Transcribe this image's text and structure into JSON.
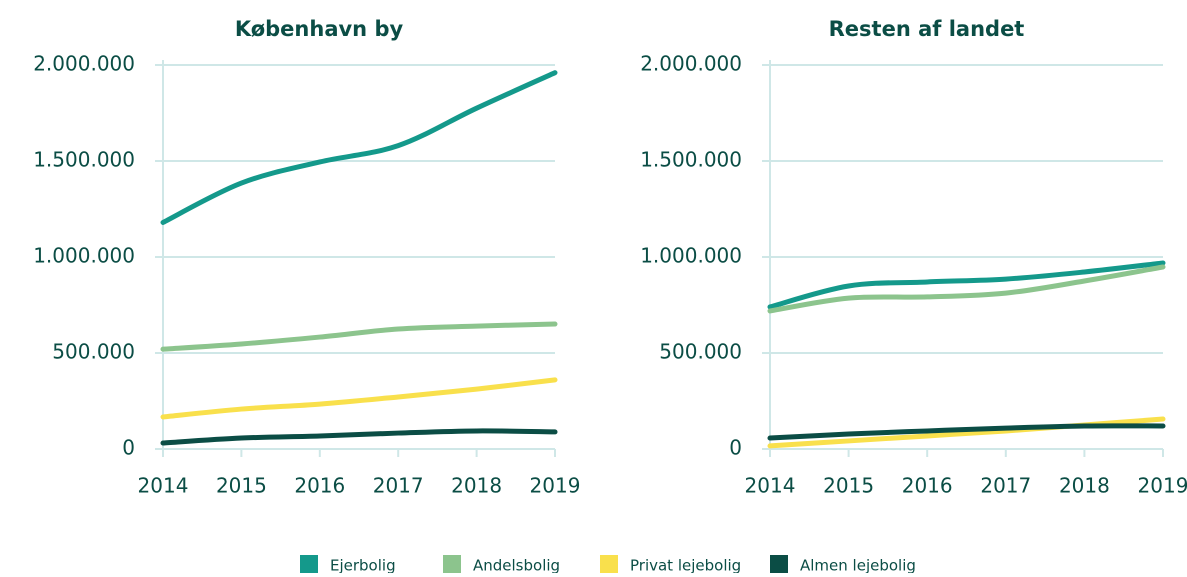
{
  "chart_data": [
    {
      "type": "line",
      "title": "København by",
      "x": [
        2014,
        2015,
        2016,
        2017,
        2018,
        2019
      ],
      "xlim": [
        2014,
        2019
      ],
      "xticks": [
        2014,
        2015,
        2016,
        2017,
        2018,
        2019
      ],
      "ylim": [
        0,
        2000000
      ],
      "yticks": [
        0,
        {
          "value": 500000,
          "label": "500.000"
        },
        {
          "value": 1000000,
          "label": "1.000.000"
        },
        {
          "value": 1500000,
          "label": "1.500.000"
        },
        {
          "value": 2000000,
          "label": "2.000.000"
        }
      ],
      "grid": true,
      "series": [
        {
          "name": "Ejerbolig",
          "color": "#14998b",
          "values": [
            1180000,
            1385000,
            1495000,
            1580000,
            1775000,
            1960000
          ]
        },
        {
          "name": "Andelsbolig",
          "color": "#8cc48d",
          "values": [
            520000,
            547000,
            583000,
            625000,
            640000,
            651000
          ]
        },
        {
          "name": "Privat lejebolig",
          "color": "#f9e04c",
          "values": [
            167000,
            208000,
            234000,
            271000,
            312000,
            360000
          ]
        },
        {
          "name": "Almen lejebolig",
          "color": "#0b4d45",
          "values": [
            31000,
            57000,
            68000,
            83000,
            94000,
            89000
          ]
        }
      ]
    },
    {
      "type": "line",
      "title": "Resten af landet",
      "x": [
        2014,
        2015,
        2016,
        2017,
        2018,
        2019
      ],
      "xlim": [
        2014,
        2019
      ],
      "xticks": [
        2014,
        2015,
        2016,
        2017,
        2018,
        2019
      ],
      "ylim": [
        0,
        2000000
      ],
      "yticks": [
        0,
        {
          "value": 500000,
          "label": "500.000"
        },
        {
          "value": 1000000,
          "label": "1.000.000"
        },
        {
          "value": 1500000,
          "label": "1.500.000"
        },
        {
          "value": 2000000,
          "label": "2.000.000"
        }
      ],
      "grid": true,
      "series": [
        {
          "color": "#14998b",
          "values": [
            740000,
            849000,
            870000,
            885000,
            922000,
            969000
          ]
        },
        {
          "color": "#8cc48d",
          "values": [
            719000,
            786000,
            792000,
            812000,
            875000,
            948000
          ]
        },
        {
          "color": "#f9e04c",
          "values": [
            16000,
            42000,
            68000,
            94000,
            125000,
            156000
          ]
        },
        {
          "color": "#0b4d45",
          "values": [
            57000,
            78000,
            94000,
            109000,
            120000,
            120000
          ]
        }
      ]
    }
  ]
}
